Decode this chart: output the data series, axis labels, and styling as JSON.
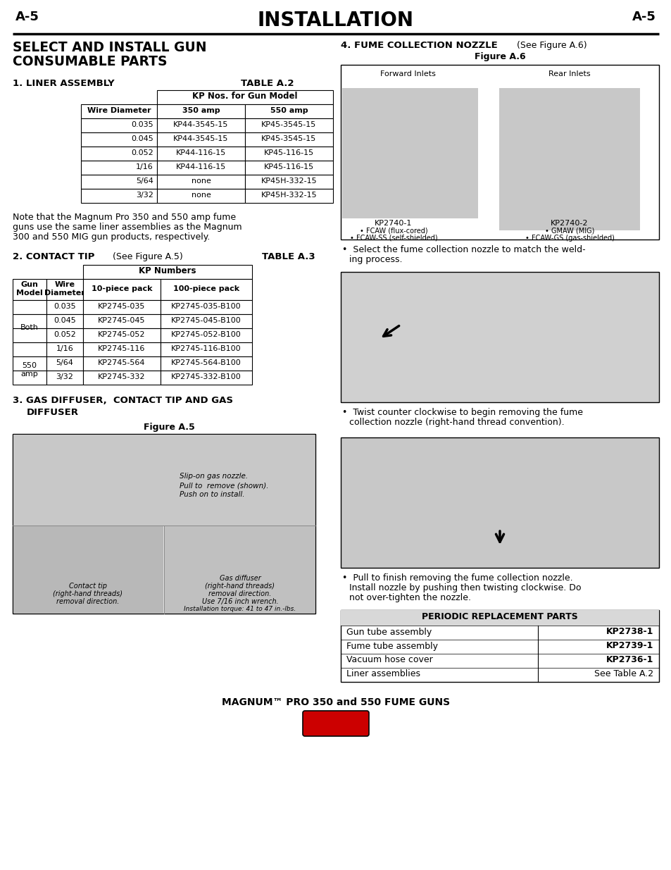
{
  "page_label_left": "A-5",
  "page_label_right": "A-5",
  "page_title": "INSTALLATION",
  "table_a2_title": "TABLE A.2",
  "table_a2_header1": "KP Nos. for Gun Model",
  "table_a2_col_headers": [
    "Wire Diameter",
    "350 amp",
    "550 amp"
  ],
  "table_a2_rows": [
    [
      "0.035",
      "KP44-3545-15",
      "KP45-3545-15"
    ],
    [
      "0.045",
      "KP44-3545-15",
      "KP45-3545-15"
    ],
    [
      "0.052",
      "KP44-116-15",
      "KP45-116-15"
    ],
    [
      "1/16",
      "KP44-116-15",
      "KP45-116-15"
    ],
    [
      "5/64",
      "none",
      "KP45H-332-15"
    ],
    [
      "3/32",
      "none",
      "KP45H-332-15"
    ]
  ],
  "liner_note_lines": [
    "Note that the Magnum Pro 350 and 550 amp fume",
    "guns use the same liner assemblies as the Magnum",
    "300 and 550 MIG gun products, respectively."
  ],
  "table_a3_title": "TABLE A.3",
  "table_a3_header1": "KP Numbers",
  "table_a3_rows": [
    [
      "Both",
      "0.035",
      "KP2745-035",
      "KP2745-035-B100"
    ],
    [
      "",
      "0.045",
      "KP2745-045",
      "KP2745-045-B100"
    ],
    [
      "",
      "0.052",
      "KP2745-052",
      "KP2745-052-B100"
    ],
    [
      "",
      "1/16",
      "KP2745-116",
      "KP2745-116-B100"
    ],
    [
      "550\namp",
      "5/64",
      "KP2745-564",
      "KP2745-564-B100"
    ],
    [
      "",
      "3/32",
      "KP2745-332",
      "KP2745-332-B100"
    ]
  ],
  "periodic_rows": [
    [
      "Gun tube assembly",
      "KP2738-1"
    ],
    [
      "Fume tube assembly",
      "KP2739-1"
    ],
    [
      "Vacuum hose cover",
      "KP2736-1"
    ],
    [
      "Liner assemblies",
      "See Table A.2"
    ]
  ],
  "footer": "MAGNUM™ PRO 350 and 550 FUME GUNS",
  "bg_color": "#ffffff"
}
